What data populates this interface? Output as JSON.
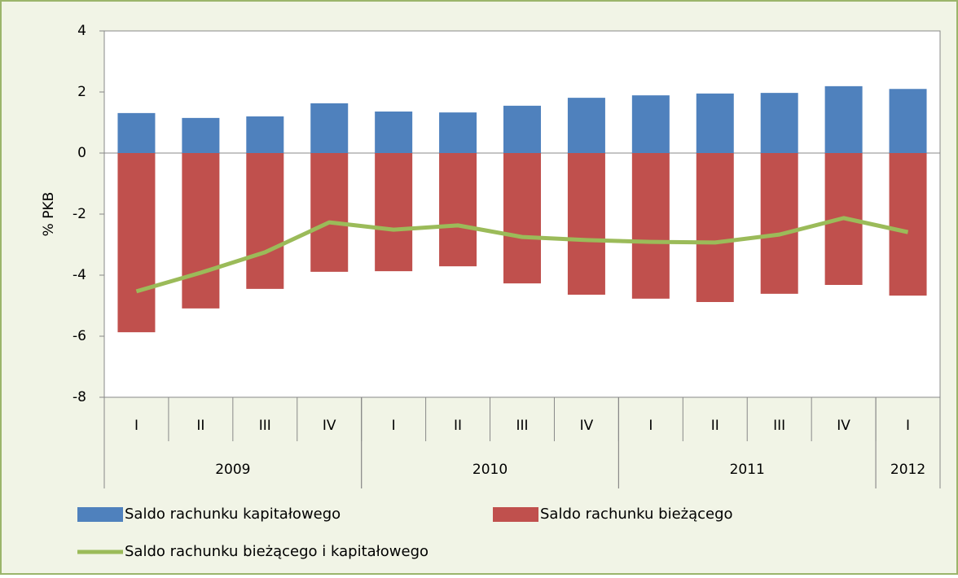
{
  "chart_data": {
    "type": "bar",
    "categories": [
      "I",
      "II",
      "III",
      "IV",
      "I",
      "II",
      "III",
      "IV",
      "I",
      "II",
      "III",
      "IV",
      "I"
    ],
    "x_groups": [
      "2009",
      "2010",
      "2011",
      "2012"
    ],
    "x_group_sizes": [
      4,
      4,
      4,
      1
    ],
    "ylabel": "% PKB",
    "ylim": [
      -8,
      4
    ],
    "yticks": [
      -8,
      -6,
      -4,
      -2,
      0,
      2,
      4
    ],
    "series": [
      {
        "name": "Saldo rachunku kapitałowego",
        "type": "bar",
        "color": "#4f81bd",
        "values": [
          1.31,
          1.15,
          1.2,
          1.63,
          1.36,
          1.33,
          1.55,
          1.81,
          1.89,
          1.95,
          1.97,
          2.19,
          2.1
        ]
      },
      {
        "name": "Saldo rachunku bieżącego",
        "type": "bar",
        "color": "#c0504d",
        "values": [
          -5.87,
          -5.09,
          -4.45,
          -3.89,
          -3.87,
          -3.71,
          -4.27,
          -4.64,
          -4.77,
          -4.88,
          -4.61,
          -4.32,
          -4.67
        ]
      },
      {
        "name": "Saldo rachunku bieżącego i kapitałowego",
        "type": "line",
        "color": "#9bbb59",
        "values": [
          -4.53,
          -3.92,
          -3.25,
          -2.27,
          -2.51,
          -2.37,
          -2.75,
          -2.85,
          -2.91,
          -2.93,
          -2.67,
          -2.13,
          -2.59
        ]
      }
    ]
  }
}
